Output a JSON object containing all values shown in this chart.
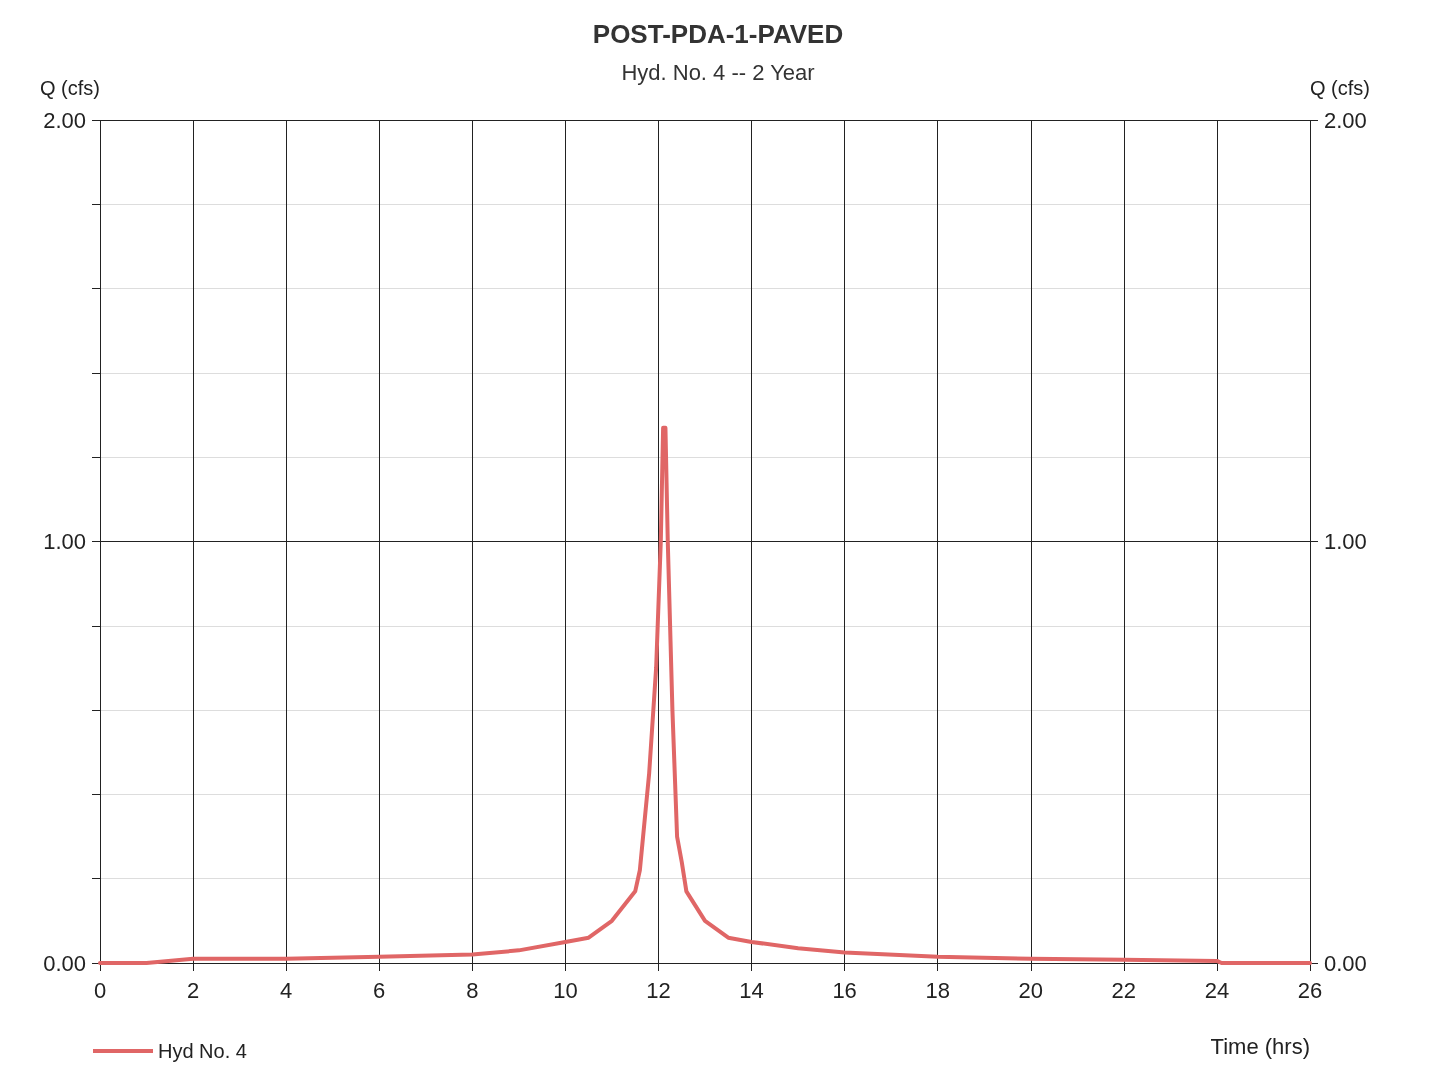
{
  "chart_data": {
    "type": "line",
    "title": "POST-PDA-1-PAVED",
    "subtitle": "Hyd. No. 4 -- 2 Year",
    "xlabel": "Time (hrs)",
    "ylabel": "Q (cfs)",
    "y2label": "Q (cfs)",
    "xlim": [
      0,
      26
    ],
    "xticks": [
      0,
      2,
      4,
      6,
      8,
      10,
      12,
      14,
      16,
      18,
      20,
      22,
      24,
      26
    ],
    "ylim": [
      0,
      2
    ],
    "yticks": [
      {
        "value": 0,
        "label": "0.00"
      },
      {
        "value": 0.2,
        "label": null
      },
      {
        "value": 0.4,
        "label": null
      },
      {
        "value": 0.6,
        "label": null
      },
      {
        "value": 0.8,
        "label": null
      },
      {
        "value": 1,
        "label": "1.00"
      },
      {
        "value": 1.2,
        "label": null
      },
      {
        "value": 1.4,
        "label": null
      },
      {
        "value": 1.6,
        "label": null
      },
      {
        "value": 1.8,
        "label": null
      },
      {
        "value": 2,
        "label": "2.00"
      }
    ],
    "y2lim": [
      0,
      2
    ],
    "y2ticks": [
      {
        "value": 0,
        "label": "0.00"
      },
      {
        "value": 1,
        "label": "1.00"
      },
      {
        "value": 2,
        "label": "2.00"
      }
    ],
    "grid": true,
    "legend": "bottom left",
    "marker": "none",
    "line_style": "solid",
    "series": [
      {
        "name": "Hyd No. 4",
        "color": "#e06666",
        "x": [
          0,
          1,
          2,
          4,
          6,
          8,
          9,
          10,
          10.5,
          11,
          11.5,
          11.6,
          11.8,
          11.95,
          12.05,
          12.1,
          12.15,
          12.2,
          12.3,
          12.4,
          12.5,
          12.6,
          13,
          13.5,
          14,
          15,
          16,
          18,
          20,
          22,
          24,
          24.1,
          26
        ],
        "values": [
          0,
          0,
          0.01,
          0.01,
          0.015,
          0.02,
          0.03,
          0.05,
          0.06,
          0.1,
          0.17,
          0.22,
          0.45,
          0.7,
          1.0,
          1.27,
          1.27,
          1.0,
          0.6,
          0.3,
          0.24,
          0.17,
          0.1,
          0.06,
          0.05,
          0.035,
          0.025,
          0.015,
          0.01,
          0.008,
          0.005,
          0,
          0
        ]
      }
    ]
  }
}
